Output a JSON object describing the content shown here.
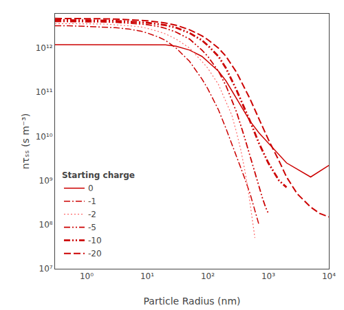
{
  "chart_data": {
    "type": "line",
    "x_label": "Particle Radius (nm)",
    "y_label": "nτₛₛ (s m⁻³)",
    "log": true,
    "grid": false,
    "legend": "lower left",
    "legend_title": "Starting charge",
    "xlim": [
      0.3,
      10000
    ],
    "ylim": [
      10000000.0,
      6000000000000.0
    ],
    "xticks": [
      {
        "value": 1,
        "label": "10⁰"
      },
      {
        "value": 10,
        "label": "10¹"
      },
      {
        "value": 100,
        "label": "10²"
      },
      {
        "value": 1000,
        "label": "10³"
      },
      {
        "value": 10000,
        "label": "10⁴"
      }
    ],
    "yticks": [
      {
        "value": 10000000.0,
        "label": "10⁷"
      },
      {
        "value": 100000000.0,
        "label": "10⁸"
      },
      {
        "value": 1000000000.0,
        "label": "10⁹"
      },
      {
        "value": 10000000000.0,
        "label": "10¹⁰"
      },
      {
        "value": 100000000000.0,
        "label": "10¹¹"
      },
      {
        "value": 1000000000000.0,
        "label": "10¹²"
      }
    ],
    "series": [
      {
        "name": "0",
        "color": "#cc0000",
        "line_style": "solid",
        "x": [
          0.3,
          0.5,
          1,
          2,
          3,
          5,
          8,
          10,
          15,
          20,
          30,
          50,
          80,
          100,
          150,
          200,
          300,
          500,
          700,
          1000,
          2000,
          5000,
          10000
        ],
        "values": [
          1200000000000.0,
          1200000000000.0,
          1200000000000.0,
          1200000000000.0,
          1200000000000.0,
          1200000000000.0,
          1200000000000.0,
          1200000000000.0,
          1200000000000.0,
          1180000000000.0,
          1100000000000.0,
          900000000000.0,
          650000000000.0,
          500000000000.0,
          300000000000.0,
          180000000000.0,
          70000000000.0,
          22000000000.0,
          12000000000.0,
          7000000000.0,
          2500000000.0,
          1200000000.0,
          2200000000.0
        ]
      },
      {
        "name": "-1",
        "color": "#cc0000",
        "line_style": "dashdot",
        "x": [
          0.3,
          0.5,
          1,
          2,
          3,
          5,
          8,
          10,
          15,
          20,
          30,
          50,
          80,
          100,
          150,
          200,
          300,
          400,
          500,
          600,
          700
        ],
        "values": [
          3200000000000.0,
          3200000000000.0,
          3100000000000.0,
          3000000000000.0,
          2900000000000.0,
          2700000000000.0,
          2400000000000.0,
          2200000000000.0,
          1800000000000.0,
          1500000000000.0,
          1000000000000.0,
          500000000000.0,
          200000000000.0,
          120000000000.0,
          40000000000.0,
          15000000000.0,
          3500000000.0,
          1200000000.0,
          500000000.0,
          200000000.0,
          100000000.0
        ]
      },
      {
        "name": "-2",
        "color": "#ff6666",
        "line_style": "dotted",
        "x": [
          0.3,
          0.5,
          1,
          2,
          3,
          5,
          8,
          10,
          15,
          20,
          30,
          50,
          80,
          100,
          150,
          200,
          250,
          300,
          350,
          400,
          450,
          500,
          550,
          600
        ],
        "values": [
          3600000000000.0,
          3600000000000.0,
          3550000000000.0,
          3500000000000.0,
          3400000000000.0,
          3200000000000.0,
          3000000000000.0,
          2800000000000.0,
          2400000000000.0,
          2100000000000.0,
          1600000000000.0,
          1000000000000.0,
          500000000000.0,
          350000000000.0,
          150000000000.0,
          60000000000.0,
          30000000000.0,
          12000000000.0,
          5000000000.0,
          2000000000.0,
          800000000.0,
          300000000.0,
          120000000.0,
          50000000.0
        ]
      },
      {
        "name": "-5",
        "color": "#cc0000",
        "line_style": "dashdotdot",
        "x": [
          0.3,
          0.5,
          1,
          2,
          3,
          5,
          8,
          10,
          15,
          20,
          30,
          50,
          80,
          100,
          150,
          200,
          300,
          400,
          500,
          600,
          700,
          800,
          900,
          1000
        ],
        "values": [
          4000000000000.0,
          4000000000000.0,
          3950000000000.0,
          3900000000000.0,
          3850000000000.0,
          3700000000000.0,
          3500000000000.0,
          3400000000000.0,
          3100000000000.0,
          2800000000000.0,
          2300000000000.0,
          1600000000000.0,
          900000000000.0,
          650000000000.0,
          300000000000.0,
          140000000000.0,
          35000000000.0,
          10000000000.0,
          3500000000.0,
          1500000000.0,
          700000000.0,
          400000000.0,
          250000000.0,
          180000000.0
        ]
      },
      {
        "name": "-10",
        "color": "#cc0000",
        "line_style": "dashdotdot",
        "x": [
          0.3,
          0.5,
          1,
          2,
          3,
          5,
          8,
          10,
          15,
          20,
          30,
          50,
          80,
          100,
          150,
          200,
          300,
          500,
          700,
          1000,
          1500,
          2000
        ],
        "values": [
          4300000000000.0,
          4300000000000.0,
          4250000000000.0,
          4200000000000.0,
          4150000000000.0,
          4000000000000.0,
          3850000000000.0,
          3750000000000.0,
          3500000000000.0,
          3300000000000.0,
          2900000000000.0,
          2200000000000.0,
          1500000000000.0,
          1150000000000.0,
          650000000000.0,
          350000000000.0,
          110000000000.0,
          22000000000.0,
          7000000000.0,
          2500000000.0,
          1000000000.0,
          700000000.0
        ]
      },
      {
        "name": "-20",
        "color": "#cc0000",
        "line_style": "dashed",
        "x": [
          0.3,
          0.5,
          1,
          2,
          3,
          5,
          8,
          10,
          15,
          20,
          30,
          50,
          80,
          100,
          150,
          200,
          300,
          500,
          700,
          1000,
          1500,
          2000,
          3000,
          5000,
          7000,
          10000
        ],
        "values": [
          4700000000000.0,
          4700000000000.0,
          4650000000000.0,
          4600000000000.0,
          4550000000000.0,
          4400000000000.0,
          4250000000000.0,
          4150000000000.0,
          3900000000000.0,
          3700000000000.0,
          3300000000000.0,
          2600000000000.0,
          1900000000000.0,
          1550000000000.0,
          1000000000000.0,
          650000000000.0,
          280000000000.0,
          70000000000.0,
          25000000000.0,
          8500000000.0,
          2800000000.0,
          1200000000.0,
          500000000.0,
          250000000.0,
          180000000.0,
          150000000.0
        ]
      }
    ]
  }
}
